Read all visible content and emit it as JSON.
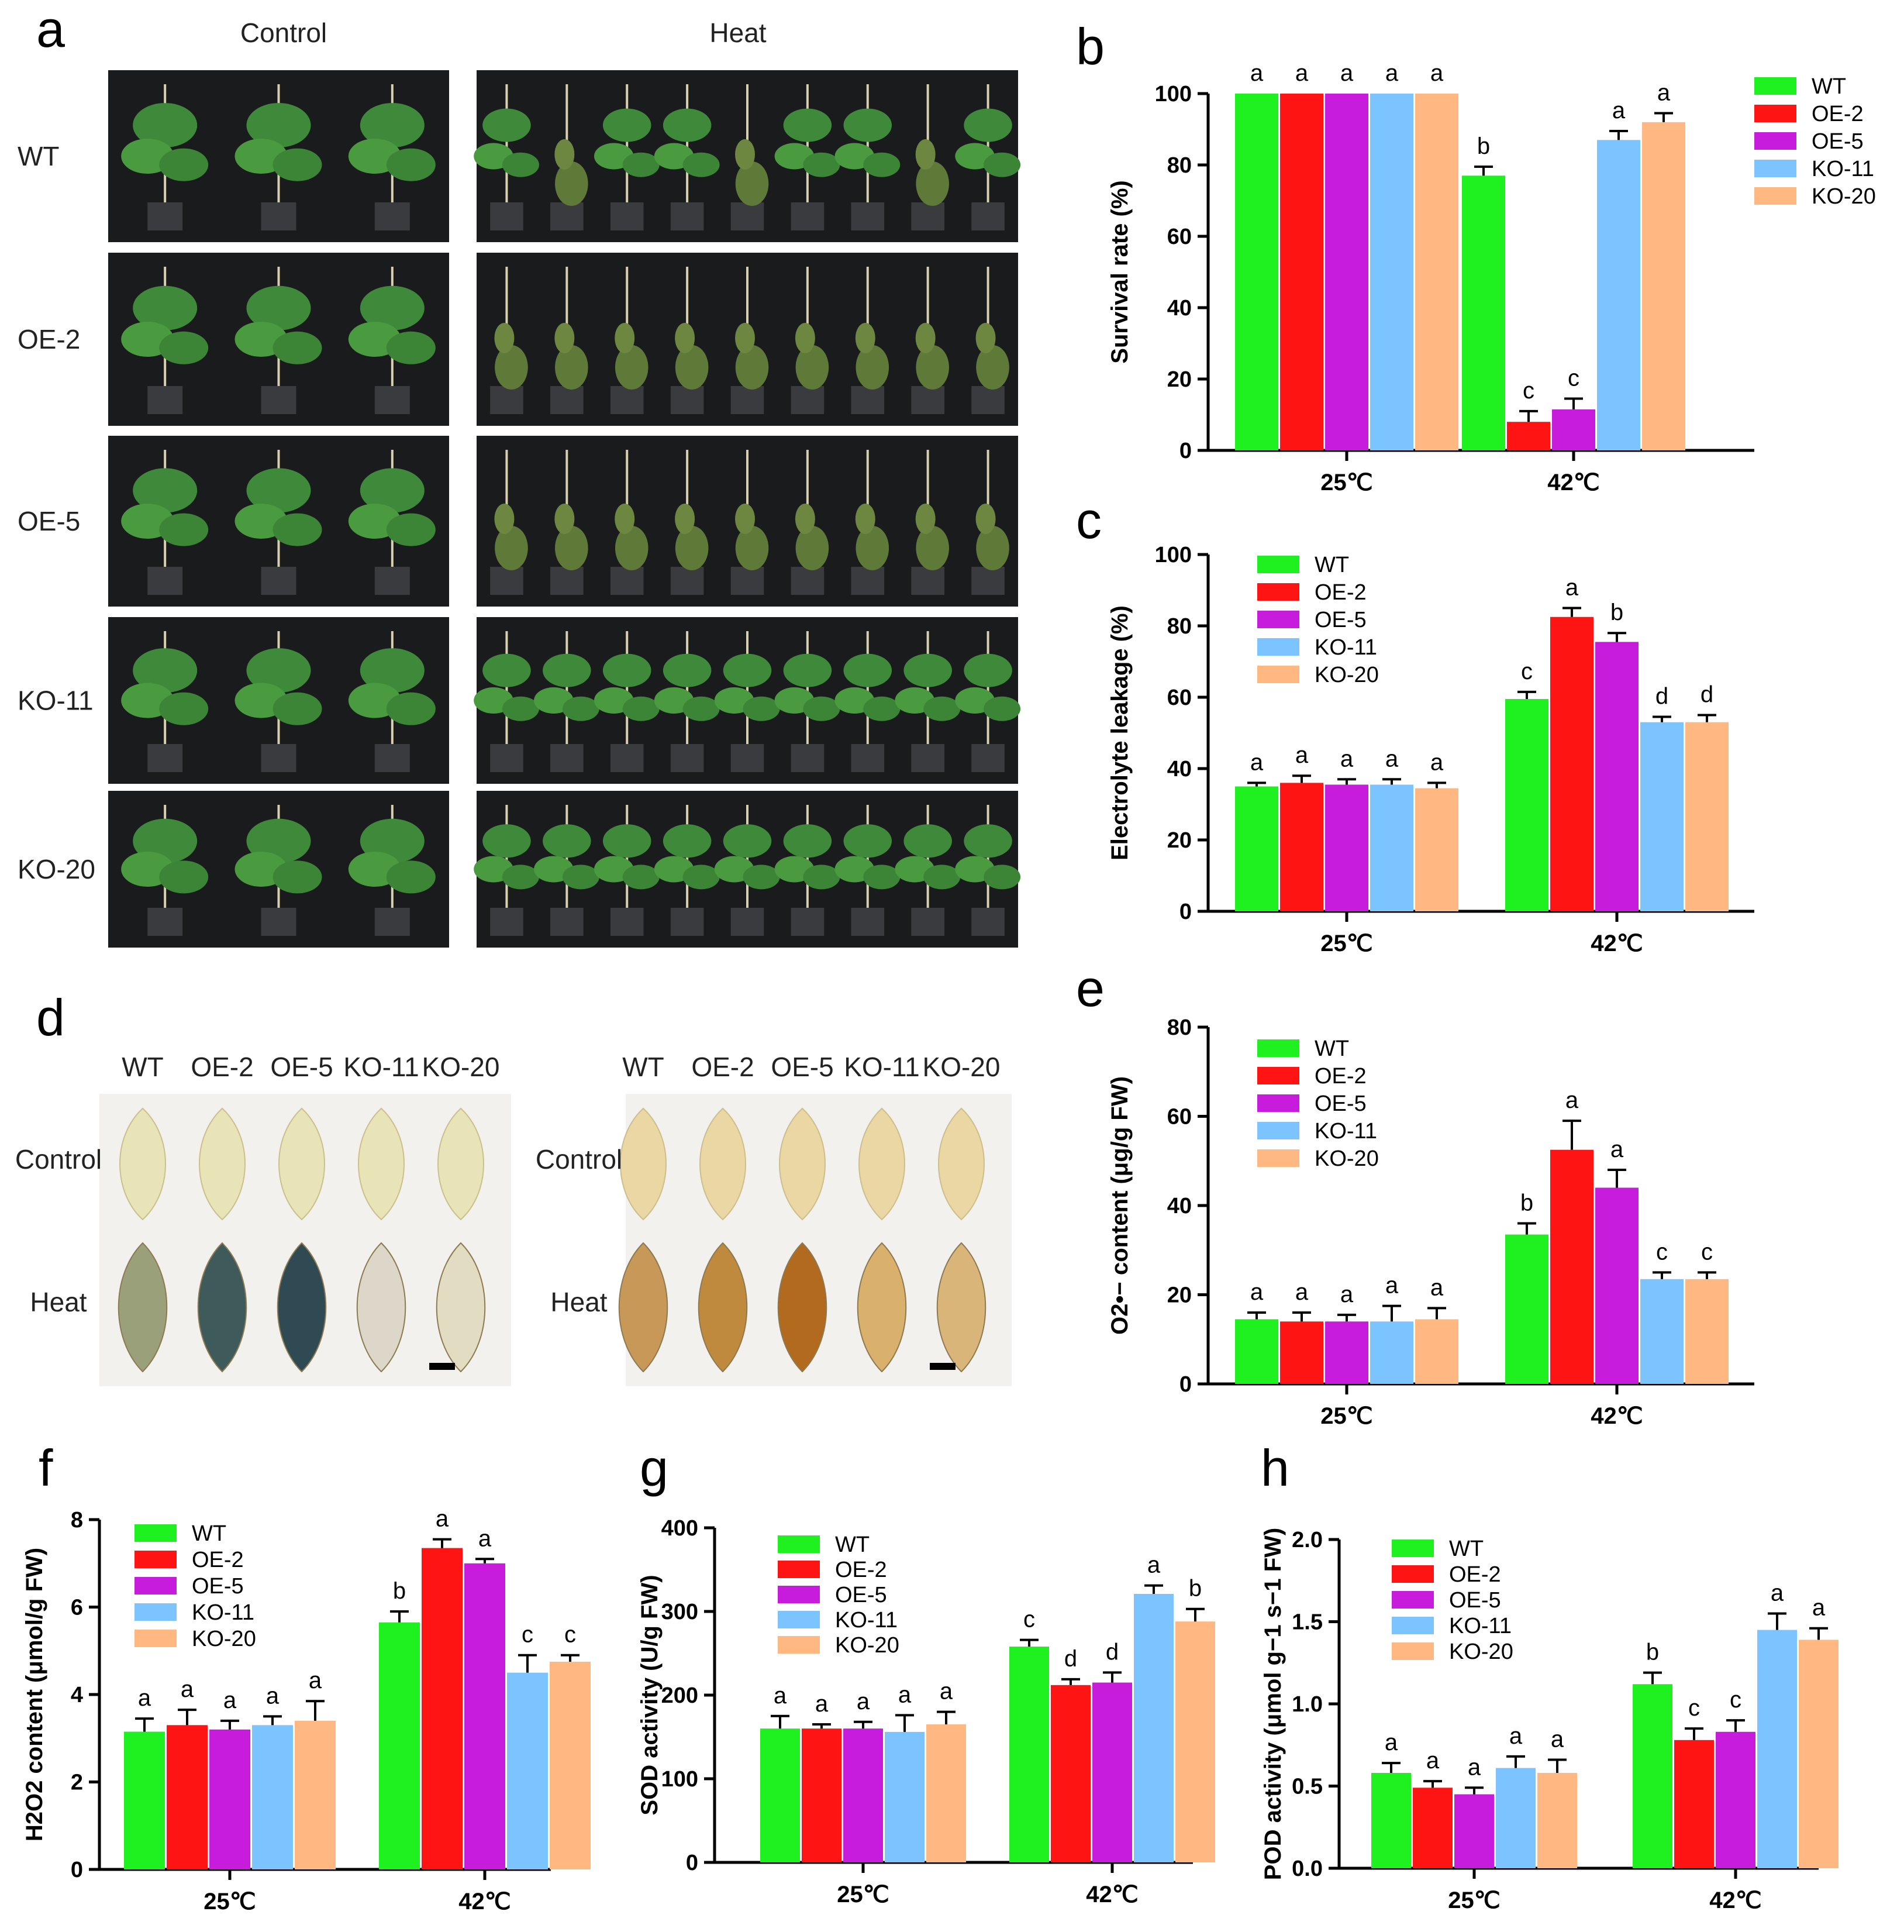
{
  "panel_a": {
    "label": "a",
    "headers": [
      "Control",
      "Heat"
    ],
    "rows": [
      "WT",
      "OE-2",
      "OE-5",
      "KO-11",
      "KO-20"
    ]
  },
  "panel_d": {
    "label": "d",
    "columns": [
      "WT",
      "OE-2",
      "OE-5",
      "KO-11",
      "KO-20"
    ],
    "rows": [
      "Control",
      "Heat"
    ],
    "colors": {
      "left_control": "#e9e3b8",
      "left_heat": [
        "#9aa07a",
        "#3f5a5a",
        "#2f4a52",
        "#dcd7c8",
        "#e2dcc2"
      ],
      "right_control": "#ead7a4",
      "right_heat": [
        "#c89858",
        "#c08a3e",
        "#b26a1e",
        "#d9b06c",
        "#dab57a"
      ]
    }
  },
  "series_colors": {
    "WT": "#1ff01f",
    "OE-2": "#ff1414",
    "OE-5": "#c81cdc",
    "KO-11": "#7cc4ff",
    "KO-20": "#ffb882"
  },
  "chart_data": [
    {
      "panel": "b",
      "type": "bar",
      "categories": [
        "25℃",
        "42℃"
      ],
      "ylabel": "Survival rate (%)",
      "ylim": [
        0,
        100
      ],
      "yticks": [
        "0",
        "20",
        "40",
        "60",
        "80",
        "100"
      ],
      "legend_position": "top-right",
      "series": [
        {
          "name": "WT",
          "values": [
            100,
            77
          ],
          "errors": [
            0,
            2.5
          ],
          "letters": [
            "a",
            "b"
          ]
        },
        {
          "name": "OE-2",
          "values": [
            100,
            8
          ],
          "errors": [
            0,
            3
          ],
          "letters": [
            "a",
            "c"
          ]
        },
        {
          "name": "OE-5",
          "values": [
            100,
            11.5
          ],
          "errors": [
            0,
            3
          ],
          "letters": [
            "a",
            "c"
          ]
        },
        {
          "name": "KO-11",
          "values": [
            100,
            87
          ],
          "errors": [
            0,
            2.5
          ],
          "letters": [
            "a",
            "a"
          ]
        },
        {
          "name": "KO-20",
          "values": [
            100,
            92
          ],
          "errors": [
            0,
            2.5
          ],
          "letters": [
            "a",
            "a"
          ]
        }
      ]
    },
    {
      "panel": "c",
      "type": "bar",
      "categories": [
        "25℃",
        "42℃"
      ],
      "ylabel": "Electrolyte leakage (%)",
      "ylim": [
        0,
        100
      ],
      "yticks": [
        "0",
        "20",
        "40",
        "60",
        "80",
        "100"
      ],
      "legend_position": "top-left",
      "series": [
        {
          "name": "WT",
          "values": [
            35,
            59.5
          ],
          "errors": [
            1,
            2
          ],
          "letters": [
            "a",
            "c"
          ]
        },
        {
          "name": "OE-2",
          "values": [
            36,
            82.5
          ],
          "errors": [
            2,
            2.5
          ],
          "letters": [
            "a",
            "a"
          ]
        },
        {
          "name": "OE-5",
          "values": [
            35.5,
            75.5
          ],
          "errors": [
            1.5,
            2.5
          ],
          "letters": [
            "a",
            "b"
          ]
        },
        {
          "name": "KO-11",
          "values": [
            35.5,
            53
          ],
          "errors": [
            1.5,
            1.5
          ],
          "letters": [
            "a",
            "d"
          ]
        },
        {
          "name": "KO-20",
          "values": [
            34.5,
            53
          ],
          "errors": [
            1.5,
            2
          ],
          "letters": [
            "a",
            "d"
          ]
        }
      ]
    },
    {
      "panel": "e",
      "type": "bar",
      "categories": [
        "25℃",
        "42℃"
      ],
      "ylabel": "O2•− content (μg/g FW)",
      "ylim": [
        0,
        80
      ],
      "yticks": [
        "0",
        "20",
        "40",
        "60",
        "80"
      ],
      "legend_position": "top-left",
      "series": [
        {
          "name": "WT",
          "values": [
            14.5,
            33.5
          ],
          "errors": [
            1.5,
            2.5
          ],
          "letters": [
            "a",
            "b"
          ]
        },
        {
          "name": "OE-2",
          "values": [
            14,
            52.5
          ],
          "errors": [
            2,
            6.5
          ],
          "letters": [
            "a",
            "a"
          ]
        },
        {
          "name": "OE-5",
          "values": [
            14,
            44
          ],
          "errors": [
            1.5,
            4
          ],
          "letters": [
            "a",
            "a"
          ]
        },
        {
          "name": "KO-11",
          "values": [
            14,
            23.5
          ],
          "errors": [
            3.5,
            1.5
          ],
          "letters": [
            "a",
            "c"
          ]
        },
        {
          "name": "KO-20",
          "values": [
            14.5,
            23.5
          ],
          "errors": [
            2.5,
            1.5
          ],
          "letters": [
            "a",
            "c"
          ]
        }
      ]
    },
    {
      "panel": "f",
      "type": "bar",
      "categories": [
        "25℃",
        "42℃"
      ],
      "ylabel": "H2O2 content (μmol/g FW)",
      "ylim": [
        0,
        8
      ],
      "yticks": [
        "0",
        "2",
        "4",
        "6",
        "8"
      ],
      "legend_position": "top-left",
      "series": [
        {
          "name": "WT",
          "values": [
            3.15,
            5.65
          ],
          "errors": [
            0.3,
            0.25
          ],
          "letters": [
            "a",
            "b"
          ]
        },
        {
          "name": "OE-2",
          "values": [
            3.3,
            7.35
          ],
          "errors": [
            0.35,
            0.2
          ],
          "letters": [
            "a",
            "a"
          ]
        },
        {
          "name": "OE-5",
          "values": [
            3.2,
            7.0
          ],
          "errors": [
            0.2,
            0.1
          ],
          "letters": [
            "a",
            "a"
          ]
        },
        {
          "name": "KO-11",
          "values": [
            3.3,
            4.5
          ],
          "errors": [
            0.2,
            0.4
          ],
          "letters": [
            "a",
            "c"
          ]
        },
        {
          "name": "KO-20",
          "values": [
            3.4,
            4.75
          ],
          "errors": [
            0.45,
            0.15
          ],
          "letters": [
            "a",
            "c"
          ]
        }
      ]
    },
    {
      "panel": "g",
      "type": "bar",
      "categories": [
        "25℃",
        "42℃"
      ],
      "ylabel": "SOD activity (U/g FW)",
      "ylim": [
        0,
        400
      ],
      "yticks": [
        "0",
        "100",
        "200",
        "300",
        "400"
      ],
      "legend_position": "top-left",
      "series": [
        {
          "name": "WT",
          "values": [
            160,
            258
          ],
          "errors": [
            15,
            8
          ],
          "letters": [
            "a",
            "c"
          ]
        },
        {
          "name": "OE-2",
          "values": [
            160,
            212
          ],
          "errors": [
            5,
            7
          ],
          "letters": [
            "a",
            "d"
          ]
        },
        {
          "name": "OE-5",
          "values": [
            160,
            215
          ],
          "errors": [
            8,
            12
          ],
          "letters": [
            "a",
            "d"
          ]
        },
        {
          "name": "KO-11",
          "values": [
            156,
            321
          ],
          "errors": [
            20,
            10
          ],
          "letters": [
            "a",
            "a"
          ]
        },
        {
          "name": "KO-20",
          "values": [
            165,
            288
          ],
          "errors": [
            15,
            15
          ],
          "letters": [
            "a",
            "b"
          ]
        }
      ]
    },
    {
      "panel": "h",
      "type": "bar",
      "categories": [
        "25℃",
        "42℃"
      ],
      "ylabel": "POD activity (μmol g−1 s−1 FW)",
      "ylim": [
        0,
        2.0
      ],
      "yticks": [
        "0.0",
        "0.5",
        "1.0",
        "1.5",
        "2.0"
      ],
      "legend_position": "top-left",
      "series": [
        {
          "name": "WT",
          "values": [
            0.58,
            1.12
          ],
          "errors": [
            0.06,
            0.07
          ],
          "letters": [
            "a",
            "b"
          ]
        },
        {
          "name": "OE-2",
          "values": [
            0.49,
            0.78
          ],
          "errors": [
            0.04,
            0.07
          ],
          "letters": [
            "a",
            "c"
          ]
        },
        {
          "name": "OE-5",
          "values": [
            0.45,
            0.83
          ],
          "errors": [
            0.04,
            0.07
          ],
          "letters": [
            "a",
            "c"
          ]
        },
        {
          "name": "KO-11",
          "values": [
            0.61,
            1.45
          ],
          "errors": [
            0.07,
            0.1
          ],
          "letters": [
            "a",
            "a"
          ]
        },
        {
          "name": "KO-20",
          "values": [
            0.58,
            1.39
          ],
          "errors": [
            0.08,
            0.07
          ],
          "letters": [
            "a",
            "a"
          ]
        }
      ]
    }
  ]
}
